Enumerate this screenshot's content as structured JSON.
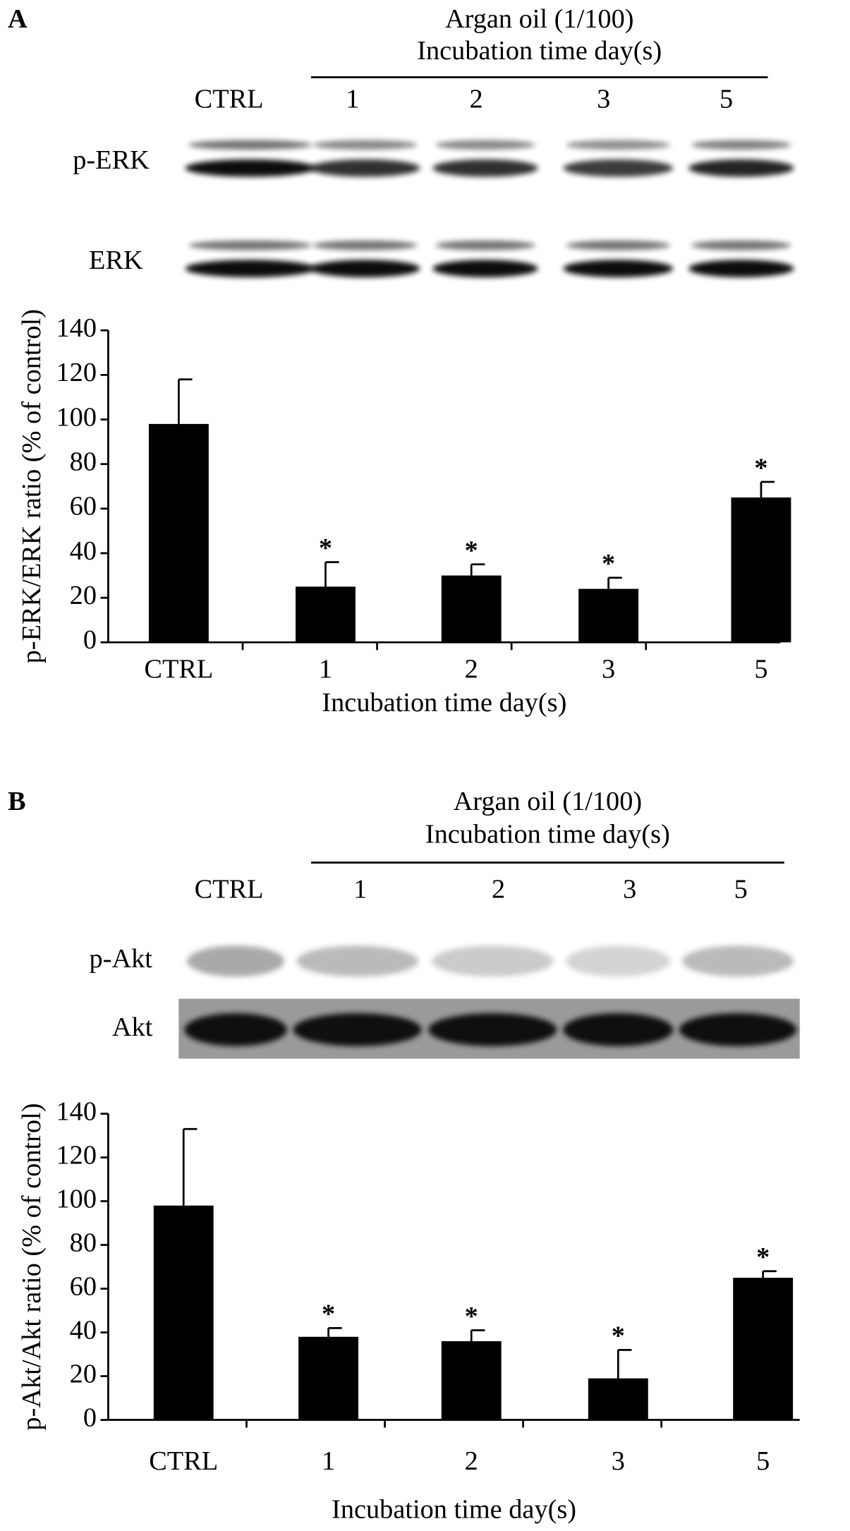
{
  "chart_data": [
    {
      "type": "bar",
      "panel_label": "A",
      "header": [
        "Argan oil (1/100)",
        "Incubation time day(s)"
      ],
      "blots": [
        "p-ERK",
        "ERK"
      ],
      "categories": [
        "CTRL",
        "1",
        "2",
        "3",
        "5"
      ],
      "values": [
        98,
        25,
        30,
        24,
        65
      ],
      "errors": [
        20,
        11,
        5,
        5,
        7
      ],
      "significance": [
        null,
        "*",
        "*",
        "*",
        "*"
      ],
      "color": "#000000",
      "xlabel": "Incubation time day(s)",
      "ylabel": "p-ERK/ERK ratio (% of control)",
      "ylim": [
        0,
        140
      ],
      "yticks": [
        0,
        20,
        40,
        60,
        80,
        100,
        120,
        140
      ]
    },
    {
      "type": "bar",
      "panel_label": "B",
      "header": [
        "Argan oil (1/100)",
        "Incubation time day(s)"
      ],
      "blots": [
        "p-Akt",
        "Akt"
      ],
      "categories": [
        "CTRL",
        "1",
        "2",
        "3",
        "5"
      ],
      "values": [
        98,
        38,
        36,
        19,
        65
      ],
      "errors": [
        35,
        4,
        5,
        13,
        3
      ],
      "significance": [
        null,
        "*",
        "*",
        "*",
        "*"
      ],
      "color": "#000000",
      "xlabel": "Incubation time day(s)",
      "ylabel": "p-Akt/Akt ratio (% of control)",
      "ylim": [
        0,
        140
      ],
      "yticks": [
        0,
        20,
        40,
        60,
        80,
        100,
        120,
        140
      ]
    }
  ]
}
